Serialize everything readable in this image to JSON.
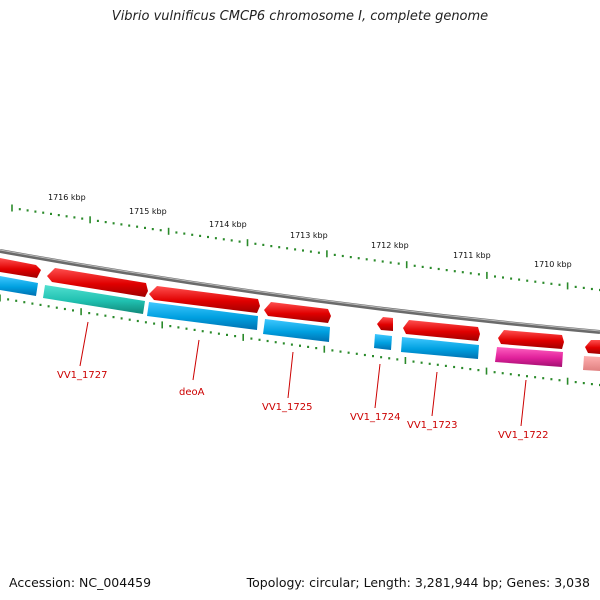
{
  "title": "Vibrio vulnificus CMCP6 chromosome I, complete genome",
  "footer": {
    "accession": "Accession: NC_004459",
    "summary": "Topology: circular; Length: 3,281,944 bp; Genes: 3,038"
  },
  "scale_labels": [
    "1716 kbp",
    "1715 kbp",
    "1714 kbp",
    "1713 kbp",
    "1712 kbp",
    "1711 kbp",
    "1710 kbp"
  ],
  "gene_labels": [
    "VV1_1727",
    "deoA",
    "VV1_1725",
    "VV1_1724",
    "VV1_1723",
    "VV1_1722"
  ],
  "colors": {
    "cds_forward": "#e00000",
    "cds_reverse": "#00a0e0",
    "teal_feature": "#20c0b0",
    "magenta_feature": "#e0209a",
    "backbone": "#888888",
    "ticks": "#2a8a2a",
    "label": "#cc0000"
  }
}
